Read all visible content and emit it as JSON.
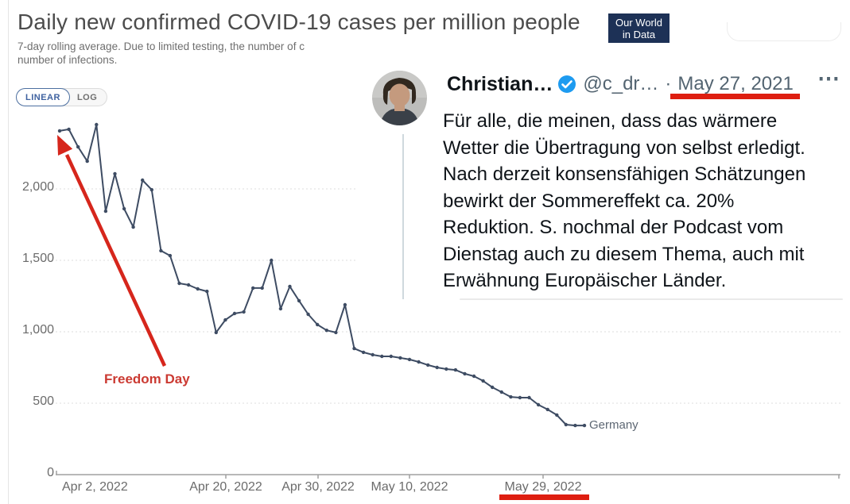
{
  "chart": {
    "title": "Daily new confirmed COVID-19 cases per million people",
    "subtitle_lines": [
      "7-day rolling average. Due to limited testing, the number of c",
      "number of infections."
    ],
    "logo_lines": [
      "Our World",
      "in Data"
    ],
    "scale_toggle": {
      "linear_label": "LINEAR",
      "log_label": "LOG",
      "selected": "LINEAR"
    },
    "series_end_label": "Germany"
  },
  "chart_data": {
    "type": "line",
    "title": "Daily new confirmed COVID-19 cases per million people",
    "entity": "Germany",
    "x_unit": "date",
    "x_frequency": "daily",
    "x_range": [
      "Apr 2, 2022",
      "May 29, 2022"
    ],
    "x_tick_labels": [
      "Apr 2, 2022",
      "Apr 20, 2022",
      "Apr 30, 2022",
      "May 10, 2022",
      "May 29, 2022"
    ],
    "y_ticks": [
      0,
      500,
      1000,
      1500,
      2000
    ],
    "y_tick_labels": [
      "0",
      "500",
      "1,000",
      "1,500",
      "2,000"
    ],
    "ylim": [
      0,
      2500
    ],
    "grid": "horizontal-dashed",
    "legend_position": "end-of-line",
    "series": [
      {
        "name": "Germany",
        "values": [
          2406,
          2417,
          2294,
          2194,
          2450,
          1844,
          2106,
          1861,
          1733,
          2061,
          1994,
          1567,
          1533,
          1339,
          1328,
          1300,
          1283,
          995,
          1083,
          1128,
          1139,
          1306,
          1306,
          1500,
          1161,
          1317,
          1217,
          1122,
          1050,
          1010,
          995,
          1189,
          883,
          856,
          839,
          828,
          828,
          817,
          806,
          789,
          767,
          750,
          739,
          733,
          706,
          689,
          656,
          611,
          578,
          544,
          539,
          539,
          489,
          456,
          417,
          350,
          344,
          344
        ]
      }
    ]
  },
  "annotations": {
    "freedom_day_label": "Freedom Day",
    "underlined_tweet_date": "May 27, 2021",
    "underlined_axis_date": "May 29, 2022"
  },
  "tweet": {
    "display_name": "Christian…",
    "handle": "@c_dr…",
    "separator": "·",
    "date": "May 27, 2021",
    "more_icon": "⋯",
    "text_lines": [
      "Für alle, die meinen, dass das wärmere",
      "Wetter die Übertragung von selbst erledigt.",
      "Nach derzeit konsensfähigen Schätzungen",
      "bewirkt der Sommereffekt ca. 20%",
      "Reduktion. S. nochmal der Podcast vom",
      "Dienstag auch zu diesem Thema, auch mit",
      "Erwähnung Europäischer Länder."
    ]
  },
  "colors": {
    "line": "#3e4c63",
    "accent_red": "#de1e10",
    "freedom_day_red": "#cb3a32",
    "owid_navy": "#1d3156",
    "twitter_blue": "#1d9bf0",
    "text_dark": "#0f1419",
    "text_gray": "#536471"
  }
}
